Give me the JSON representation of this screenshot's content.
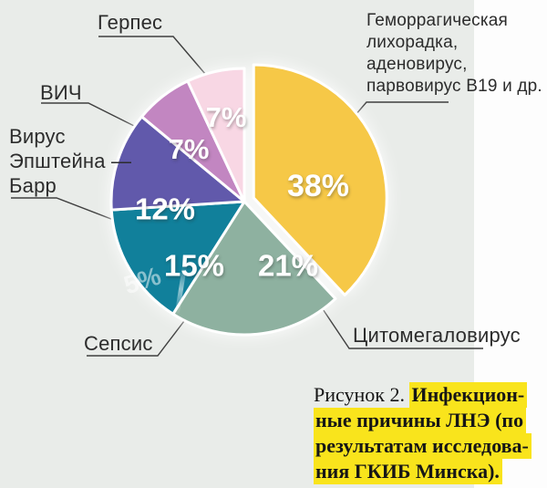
{
  "chart_data": {
    "type": "pie",
    "title": "",
    "unit": "%",
    "direction": "clockwise",
    "start_angle_deg": 0,
    "slices": [
      {
        "label": "Геморрагическая лихорадка, аденовирус, парвовирус В19 и др.",
        "value": 38,
        "color": "#f6c847",
        "exploded": true
      },
      {
        "label": "Цитомегаловирус",
        "value": 21,
        "color": "#8eb1a0",
        "exploded": false
      },
      {
        "label": "Сепсис",
        "value": 15,
        "color": "#11809b",
        "exploded": false
      },
      {
        "label": "Вирус Эпштейна — Барр",
        "value": 12,
        "color": "#6159ab",
        "exploded": false
      },
      {
        "label": "ВИЧ",
        "value": 7,
        "color": "#c286c1",
        "exploded": false
      },
      {
        "label": "Герпес",
        "value": 7,
        "color": "#f8d7e4",
        "exploded": false
      }
    ],
    "value_labels": [
      "38%",
      "21%",
      "15%",
      "12%",
      "7%",
      "7%"
    ]
  },
  "callouts": {
    "gerpes": "Герпес",
    "vich": "ВИЧ",
    "epstein": "Вирус\nЭпштейна —\nБарр",
    "sepsis": "Сепсис",
    "cmv": "Цитомегаловирус",
    "hemorrhagic": "Геморрагическая\nлихорадка,\nаденовирус,\nпарвовирус В19 и др."
  },
  "caption": {
    "prefix": "Рисунок 2. ",
    "lines": [
      "Инфекцион-",
      "ные причины ЛНЭ (по",
      "результатам исследова-",
      "ния ГКИБ Минска)."
    ],
    "highlight_color": "#f9e41c"
  },
  "artifacts": {
    "ghost_label": "5%"
  },
  "colors": {
    "background": "#e9ece9",
    "right_strip": "#fdfdfd",
    "leader_line": "#3f3f3f",
    "label_text": "#2c2c2c",
    "percent_text": "#ffffff"
  }
}
